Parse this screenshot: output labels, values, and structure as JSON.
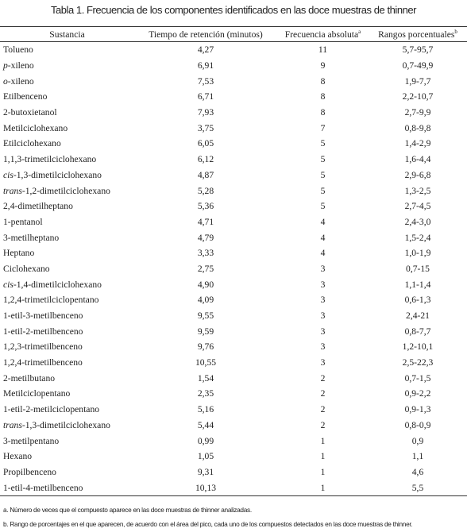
{
  "title": "Tabla 1. Frecuencia de los componentes identificados en las doce muestras de thinner",
  "table": {
    "header": [
      {
        "text": "Sustancia"
      },
      {
        "text": "Tiempo de retención (minutos)"
      },
      {
        "text": "Frecuencia absoluta",
        "sup": "a"
      },
      {
        "text": "Rangos porcentuales",
        "sup": "b"
      }
    ],
    "rows": [
      {
        "sustancia": "Tolueno",
        "tiempo": "4,27",
        "frecuencia": 11,
        "rangos": "5,7-95,7"
      },
      {
        "prefijo": "p",
        "sustancia": "-xileno",
        "tiempo": "6,91",
        "frecuencia": 9,
        "rangos": "0,7-49,9"
      },
      {
        "prefijo": "o",
        "sustancia": "-xileno",
        "tiempo": "7,53",
        "frecuencia": 8,
        "rangos": "1,9-7,7"
      },
      {
        "sustancia": "Etilbenceno",
        "tiempo": "6,71",
        "frecuencia": 8,
        "rangos": "2,2-10,7"
      },
      {
        "sustancia": "2-butoxietanol",
        "tiempo": "7,93",
        "frecuencia": 8,
        "rangos": "2,7-9,9"
      },
      {
        "sustancia": "Metilciclohexano",
        "tiempo": "3,75",
        "frecuencia": 7,
        "rangos": "0,8-9,8"
      },
      {
        "sustancia": "Etilciclohexano",
        "tiempo": "6,05",
        "frecuencia": 5,
        "rangos": "1,4-2,9"
      },
      {
        "sustancia": "1,1,3-trimetilciclohexano",
        "tiempo": "6,12",
        "frecuencia": 5,
        "rangos": "1,6-4,4"
      },
      {
        "prefijo": "cis",
        "sustancia": "-1,3-dimetilciclohexano",
        "tiempo": "4,87",
        "frecuencia": 5,
        "rangos": "2,9-6,8"
      },
      {
        "prefijo": "trans",
        "sustancia": "-1,2-dimetilciclohexano",
        "tiempo": "5,28",
        "frecuencia": 5,
        "rangos": "1,3-2,5"
      },
      {
        "sustancia": "2,4-dimetilheptano",
        "tiempo": "5,36",
        "frecuencia": 5,
        "rangos": "2,7-4,5"
      },
      {
        "sustancia": "1-pentanol",
        "tiempo": "4,71",
        "frecuencia": 4,
        "rangos": "2,4-3,0"
      },
      {
        "sustancia": "3-metilheptano",
        "tiempo": "4,79",
        "frecuencia": 4,
        "rangos": "1,5-2,4"
      },
      {
        "sustancia": "Heptano",
        "tiempo": "3,33",
        "frecuencia": 4,
        "rangos": "1,0-1,9"
      },
      {
        "sustancia": "Ciclohexano",
        "tiempo": "2,75",
        "frecuencia": 3,
        "rangos": "0,7-15"
      },
      {
        "prefijo": "cis",
        "sustancia": "-1,4-dimetilciclohexano",
        "tiempo": "4,90",
        "frecuencia": 3,
        "rangos": "1,1-1,4"
      },
      {
        "sustancia": "1,2,4-trimetilciclopentano",
        "tiempo": "4,09",
        "frecuencia": 3,
        "rangos": "0,6-1,3"
      },
      {
        "sustancia": "1-etil-3-metilbenceno",
        "tiempo": "9,55",
        "frecuencia": 3,
        "rangos": "2,4-21"
      },
      {
        "sustancia": "1-etil-2-metilbenceno",
        "tiempo": "9,59",
        "frecuencia": 3,
        "rangos": "0,8-7,7"
      },
      {
        "sustancia": "1,2,3-trimetilbenceno",
        "tiempo": "9,76",
        "frecuencia": 3,
        "rangos": "1,2-10,1"
      },
      {
        "sustancia": "1,2,4-trimetilbenceno",
        "tiempo": "10,55",
        "frecuencia": 3,
        "rangos": "2,5-22,3"
      },
      {
        "sustancia": "2-metilbutano",
        "tiempo": "1,54",
        "frecuencia": 2,
        "rangos": "0,7-1,5"
      },
      {
        "sustancia": "Metilciclopentano",
        "tiempo": "2,35",
        "frecuencia": 2,
        "rangos": "0,9-2,2"
      },
      {
        "sustancia": "1-etil-2-metilciclopentano",
        "tiempo": "5,16",
        "frecuencia": 2,
        "rangos": "0,9-1,3"
      },
      {
        "prefijo": "trans",
        "sustancia": "-1,3-dimetilciclohexano",
        "tiempo": "5,44",
        "frecuencia": 2,
        "rangos": "0,8-0,9"
      },
      {
        "sustancia": "3-metilpentano",
        "tiempo": "0,99",
        "frecuencia": 1,
        "rangos": "0,9"
      },
      {
        "sustancia": "Hexano",
        "tiempo": "1,05",
        "frecuencia": 1,
        "rangos": "1,1"
      },
      {
        "sustancia": "Propilbenceno",
        "tiempo": "9,31",
        "frecuencia": 1,
        "rangos": "4,6"
      },
      {
        "sustancia": "1-etil-4-metilbenceno",
        "tiempo": "10,13",
        "frecuencia": 1,
        "rangos": "5,5"
      }
    ]
  },
  "footnotes": [
    {
      "marker": "a.",
      "text": "Número de veces que el compuesto aparece en las doce muestras de thinner analizadas."
    },
    {
      "marker": "b.",
      "text": "Rango de porcentajes en el que aparecen, de acuerdo con el área del pico, cada uno de los compuestos detectados en las doce muestras de thinner."
    }
  ]
}
